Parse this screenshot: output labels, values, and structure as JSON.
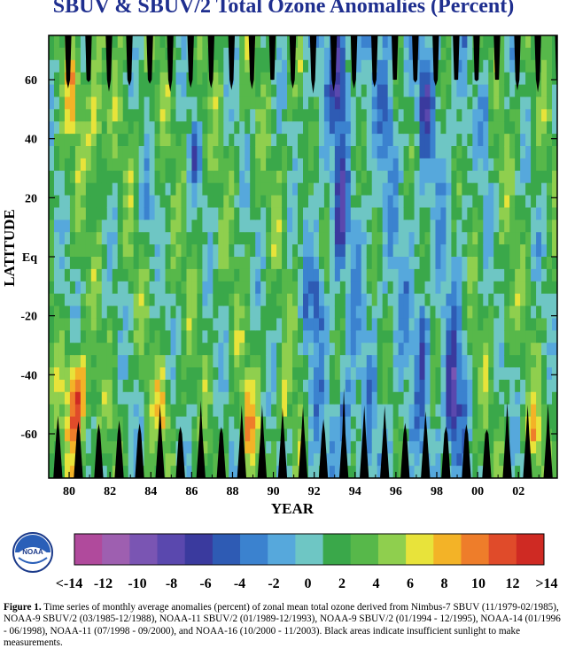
{
  "chart_data": {
    "type": "heatmap",
    "title": "SBUV & SBUV/2 Total Ozone Anomalies (Percent)",
    "xlabel": "YEAR",
    "ylabel": "LATITUDE",
    "x_ticks": [
      "80",
      "82",
      "84",
      "86",
      "88",
      "90",
      "92",
      "94",
      "96",
      "98",
      "00",
      "02"
    ],
    "x_tick_years": [
      1980,
      1982,
      1984,
      1986,
      1988,
      1990,
      1992,
      1994,
      1996,
      1998,
      2000,
      2002
    ],
    "xlim": [
      1979.0,
      2003.9
    ],
    "y_ticks": [
      "60",
      "40",
      "20",
      "Eq",
      "-20",
      "-40",
      "-60"
    ],
    "y_tick_values": [
      60,
      40,
      20,
      0,
      -20,
      -40,
      -60
    ],
    "ylim": [
      -75,
      75
    ],
    "colorbar": {
      "labels": [
        "<-14",
        "-12",
        "-10",
        "-8",
        "-6",
        "-4",
        "-2",
        "0",
        "2",
        "4",
        "6",
        "8",
        "10",
        "12",
        ">14"
      ],
      "range": [
        -14,
        14
      ],
      "colors": [
        "#b04a9c",
        "#9e5fb0",
        "#7a55b3",
        "#5a48ae",
        "#3a3a9e",
        "#2e5bb4",
        "#3b82cf",
        "#56a8dc",
        "#6ec6c4",
        "#3aa84a",
        "#57b84a",
        "#8fcf4e",
        "#e8e33a",
        "#f3b327",
        "#ee7d2a",
        "#e04b2a",
        "#cf2a23"
      ]
    },
    "missing_color": "#000000",
    "grid": false,
    "note": "Black areas indicate insufficient sunlight to make measurements."
  },
  "logo": {
    "text": "NOAA"
  },
  "caption": {
    "label": "Figure 1.",
    "text": " Time series of monthly average anomalies (percent) of zonal mean total ozone derived from Nimbus-7 SBUV (11/1979-02/1985), NOAA-9 SBUV/2 (03/1985-12/1988), NOAA-11 SBUV/2 (01/1989-12/1993), NOAA-9 SBUV/2 (01/1994 - 12/1995), NOAA-14 (01/1996 - 06/1998), NOAA-11 (07/1998 - 09/2000), and NOAA-16 (10/2000 - 11/2003).  Black areas indicate insufficient sunlight to make measurements."
  }
}
